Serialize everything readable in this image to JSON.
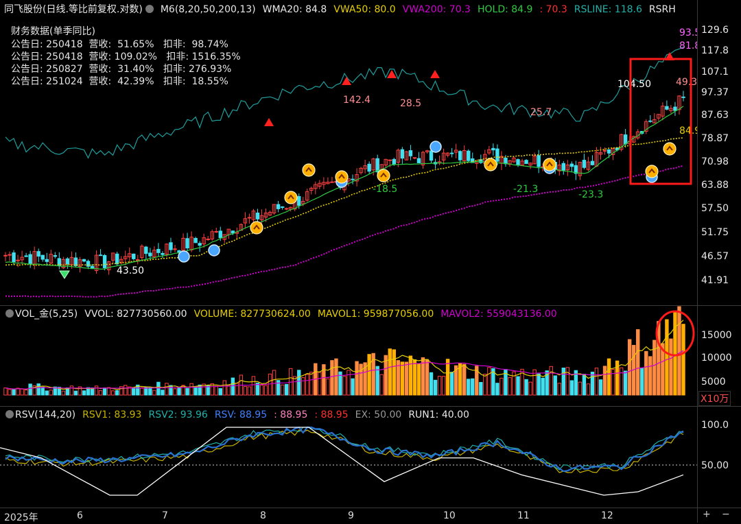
{
  "main": {
    "title": "同飞股份(日线.等比前复权.对数)",
    "indicators": [
      {
        "label": "M6(8,20,50,200,13)",
        "color": "#e8e8e8"
      },
      {
        "label": "WMA20: 84.8",
        "color": "#e8e8e8"
      },
      {
        "label": "VWA50: 80.0",
        "color": "#e8d000"
      },
      {
        "label": "VWA200: 70.3",
        "color": "#d000d0"
      },
      {
        "label": "HOLD: 84.9",
        "color": "#2ecc40"
      },
      {
        "label": ": 70.3",
        "color": "#ff3030"
      },
      {
        "label": "RSLINE: 118.6",
        "color": "#20b2aa"
      },
      {
        "label": "RSRH",
        "color": "#e8e8e8"
      }
    ],
    "financials": {
      "title": "财务数据(单季同比)",
      "rows": [
        "公告日: 250418  营收:  51.65%   扣非:  98.74%",
        "公告日: 250418  营收: 109.02%   扣非: 1516.35%",
        "公告日: 250827  营收:  31.40%   扣非: 276.93%",
        "公告日: 251024  营收:  42.39%   扣非:  18.55%"
      ]
    },
    "y_ticks": [
      "129.6",
      "117.8",
      "107.1",
      "97.37",
      "87.63",
      "78.87",
      "70.98",
      "63.88",
      "57.50",
      "51.75",
      "46.57",
      "41.91"
    ],
    "right_labels": {
      "rsline_hi": "93.5",
      "rsline": "81.8",
      "hold": "84.9",
      "last": "49.3"
    },
    "annotations": [
      {
        "text": "142.4",
        "color": "#ff9090"
      },
      {
        "text": "28.5",
        "color": "#ff9090"
      },
      {
        "text": "-18.5",
        "color": "#2ecc40"
      },
      {
        "text": "25.7",
        "color": "#ff9090"
      },
      {
        "text": "-21.3",
        "color": "#2ecc40"
      },
      {
        "text": "-23.3",
        "color": "#2ecc40"
      },
      {
        "text": "104.50",
        "color": "#ffffff"
      },
      {
        "text": "43.50",
        "color": "#ffffff"
      }
    ]
  },
  "volume": {
    "name": "VOL_金(5,25)",
    "indicators": [
      {
        "label": "VVOL: 827730560.00",
        "color": "#e8e8e8"
      },
      {
        "label": "VOLUME: 827730624.00",
        "color": "#e8d000"
      },
      {
        "label": "MAVOL1: 959877056.00",
        "color": "#e8d000"
      },
      {
        "label": "MAVOL2: 559043136.00",
        "color": "#d000d0"
      }
    ],
    "y_ticks": [
      "15000",
      "10000",
      "5000"
    ],
    "unit": "X10万"
  },
  "rsv": {
    "name": "RSV(144,20)",
    "indicators": [
      {
        "label": "RSV1: 83.93",
        "color": "#c8b400"
      },
      {
        "label": "RSV2: 93.96",
        "color": "#20b2aa"
      },
      {
        "label": "RSV: 88.95",
        "color": "#4080ff"
      },
      {
        "label": ": 88.95",
        "color": "#ff80c0"
      },
      {
        "label": ": 88.95",
        "color": "#ff3030"
      },
      {
        "label": "EX: 50.00",
        "color": "#999999"
      },
      {
        "label": "RUN1: 40.00",
        "color": "#e8e8e8"
      }
    ],
    "y_ticks": [
      "100.0",
      "50.00"
    ]
  },
  "x_axis": {
    "labels": [
      "2025年",
      "6",
      "7",
      "8",
      "9",
      "10",
      "11",
      "12"
    ]
  },
  "chart_data": {
    "type": "candlestick",
    "price_scale": "log",
    "ylim": [
      41.91,
      129.6
    ],
    "close_series_approx": {
      "months": [
        "2025-05",
        "2025-06",
        "2025-07",
        "2025-08",
        "2025-09",
        "2025-10",
        "2025-11",
        "2025-12"
      ],
      "values": [
        47,
        45.5,
        50,
        60,
        73,
        74,
        70,
        95
      ]
    },
    "rsline_approx": [
      78,
      74,
      86,
      100,
      108,
      92,
      88,
      118.6
    ],
    "vwa50_approx": [
      45,
      45,
      47,
      56,
      66,
      73,
      75,
      80
    ],
    "vwa200_approx": [
      39,
      39,
      41,
      45,
      53,
      60,
      64,
      70.3
    ],
    "volume_approx_x10w": [
      2000,
      1500,
      2500,
      4500,
      8000,
      5000,
      4500,
      17000
    ],
    "rsv_range": [
      0,
      100
    ]
  }
}
